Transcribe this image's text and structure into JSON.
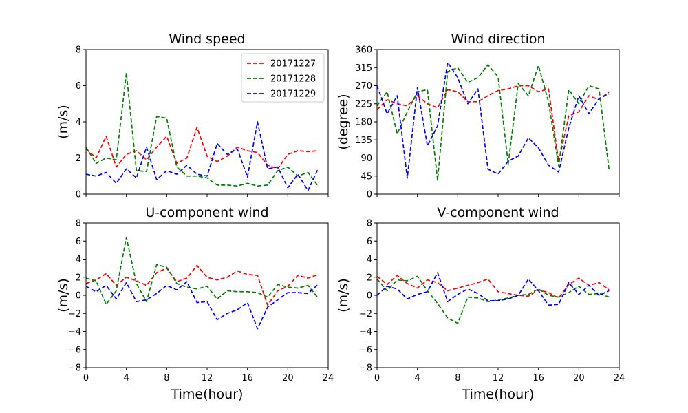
{
  "chart_data": [
    {
      "type": "line",
      "title": "Wind speed",
      "xlabel": "",
      "ylabel": "(m/s)",
      "xlim": [
        0,
        24
      ],
      "ylim": [
        0,
        8
      ],
      "xticks": [
        0,
        4,
        8,
        12,
        16,
        20,
        24
      ],
      "xtick_labels_visible": false,
      "yticks": [
        0,
        2,
        4,
        6,
        8
      ],
      "grid": false,
      "legend": "top-right",
      "x": [
        0,
        1,
        2,
        3,
        4,
        5,
        6,
        7,
        8,
        9,
        10,
        11,
        12,
        13,
        14,
        15,
        16,
        17,
        18,
        19,
        20,
        21,
        22,
        23
      ],
      "series": [
        {
          "name": "20171227",
          "color": "#ff0000",
          "values": [
            2.5,
            2.0,
            3.2,
            1.5,
            2.2,
            2.4,
            1.9,
            2.6,
            3.2,
            1.7,
            2.0,
            3.7,
            2.1,
            1.8,
            2.1,
            2.6,
            2.4,
            2.3,
            1.6,
            1.4,
            2.2,
            2.4,
            2.35,
            2.4
          ]
        },
        {
          "name": "20171228",
          "color": "#008000",
          "values": [
            2.6,
            1.7,
            2.0,
            1.9,
            6.7,
            1.3,
            1.25,
            4.3,
            4.2,
            1.5,
            1.0,
            1.0,
            0.9,
            0.5,
            0.5,
            0.45,
            0.6,
            0.45,
            0.5,
            1.3,
            1.5,
            1.0,
            1.2,
            0.45
          ]
        },
        {
          "name": "20171229",
          "color": "#0000ff",
          "values": [
            1.1,
            1.0,
            1.2,
            0.6,
            1.4,
            0.9,
            2.6,
            0.8,
            1.3,
            1.1,
            1.6,
            1.1,
            1.0,
            2.8,
            2.2,
            2.5,
            0.95,
            4.0,
            1.4,
            1.5,
            0.35,
            1.1,
            0.2,
            1.4
          ]
        }
      ]
    },
    {
      "type": "line",
      "title": "Wind direction",
      "xlabel": "",
      "ylabel": "(degree)",
      "xlim": [
        0,
        24
      ],
      "ylim": [
        0,
        360
      ],
      "xticks": [
        0,
        4,
        8,
        12,
        16,
        20,
        24
      ],
      "xtick_labels_visible": false,
      "yticks": [
        0,
        45,
        90,
        135,
        180,
        225,
        270,
        315,
        360
      ],
      "grid": false,
      "x": [
        0,
        1,
        2,
        3,
        4,
        5,
        6,
        7,
        8,
        9,
        10,
        11,
        12,
        13,
        14,
        15,
        16,
        17,
        18,
        19,
        20,
        21,
        22,
        23
      ],
      "series": [
        {
          "color": "#ff0000",
          "values": [
            210,
            235,
            225,
            220,
            245,
            225,
            215,
            260,
            255,
            230,
            230,
            245,
            258,
            262,
            270,
            270,
            255,
            262,
            80,
            195,
            205,
            245,
            235,
            255
          ]
        },
        {
          "color": "#008000",
          "values": [
            220,
            255,
            150,
            205,
            255,
            260,
            35,
            305,
            315,
            278,
            290,
            322,
            292,
            75,
            275,
            245,
            320,
            230,
            70,
            260,
            225,
            270,
            262,
            60
          ]
        },
        {
          "color": "#0000ff",
          "values": [
            270,
            200,
            245,
            40,
            265,
            120,
            170,
            328,
            290,
            225,
            262,
            62,
            50,
            82,
            95,
            140,
            115,
            72,
            55,
            165,
            245,
            200,
            238,
            250
          ]
        }
      ]
    },
    {
      "type": "line",
      "title": "U-component wind",
      "xlabel": "Time(hour)",
      "ylabel": "(m/s)",
      "xlim": [
        0,
        24
      ],
      "ylim": [
        -8,
        8
      ],
      "xticks": [
        0,
        4,
        8,
        12,
        16,
        20,
        24
      ],
      "yticks": [
        -8,
        -6,
        -4,
        -2,
        0,
        2,
        4,
        6,
        8
      ],
      "grid": false,
      "x": [
        0,
        1,
        2,
        3,
        4,
        5,
        6,
        7,
        8,
        9,
        10,
        11,
        12,
        13,
        14,
        15,
        16,
        17,
        18,
        19,
        20,
        21,
        22,
        23
      ],
      "series": [
        {
          "color": "#ff0000",
          "values": [
            1.3,
            1.7,
            2.4,
            1.1,
            2.0,
            1.6,
            1.1,
            2.5,
            3.0,
            1.5,
            1.9,
            3.3,
            2.0,
            1.7,
            2.0,
            2.7,
            2.3,
            2.2,
            -1.1,
            0.5,
            1.0,
            2.2,
            1.9,
            2.3
          ]
        },
        {
          "color": "#008000",
          "values": [
            1.9,
            1.6,
            -1.0,
            0.5,
            6.4,
            1.3,
            -0.7,
            3.4,
            3.1,
            1.3,
            0.9,
            0.7,
            1.0,
            -0.4,
            0.5,
            0.4,
            0.4,
            0.3,
            -0.2,
            1.2,
            0.9,
            0.8,
            1.1,
            -0.3
          ]
        },
        {
          "color": "#0000ff",
          "values": [
            1.0,
            0.4,
            1.1,
            -0.4,
            1.4,
            -0.7,
            -0.5,
            0.2,
            1.1,
            0.6,
            1.5,
            -0.8,
            -0.7,
            -2.7,
            -2.0,
            -1.6,
            -0.8,
            -3.7,
            -1.3,
            -0.5,
            0.3,
            0.3,
            0.2,
            1.2
          ]
        }
      ]
    },
    {
      "type": "line",
      "title": "V-component wind",
      "xlabel": "Time(hour)",
      "ylabel": "(m/s)",
      "xlim": [
        0,
        24
      ],
      "ylim": [
        -8,
        8
      ],
      "xticks": [
        0,
        4,
        8,
        12,
        16,
        20,
        24
      ],
      "yticks": [
        -8,
        -6,
        -4,
        -2,
        0,
        2,
        4,
        6,
        8
      ],
      "grid": false,
      "x": [
        0,
        1,
        2,
        3,
        4,
        5,
        6,
        7,
        8,
        9,
        10,
        11,
        12,
        13,
        14,
        15,
        16,
        17,
        18,
        19,
        20,
        21,
        22,
        23
      ],
      "series": [
        {
          "color": "#ff0000",
          "values": [
            2.1,
            1.2,
            2.2,
            1.3,
            0.8,
            1.7,
            1.4,
            0.5,
            0.8,
            1.1,
            1.4,
            1.8,
            0.4,
            0.2,
            0.0,
            -0.1,
            0.6,
            0.3,
            -0.3,
            1.2,
            1.9,
            1.1,
            1.4,
            0.6
          ]
        },
        {
          "color": "#008000",
          "values": [
            1.8,
            0.5,
            1.7,
            1.6,
            2.1,
            0.5,
            -0.9,
            -2.5,
            -3.1,
            -0.2,
            -0.3,
            -0.7,
            -0.5,
            -0.3,
            0.0,
            0.1,
            0.7,
            0.0,
            -0.2,
            0.3,
            1.0,
            0.1,
            0.2,
            -0.2
          ]
        },
        {
          "color": "#0000ff",
          "values": [
            0.0,
            1.0,
            0.7,
            -0.4,
            0.1,
            0.4,
            2.5,
            -0.7,
            0.1,
            0.7,
            0.2,
            -0.6,
            -0.6,
            -0.4,
            0.0,
            1.8,
            0.5,
            -1.1,
            -1.0,
            1.4,
            0.1,
            1.1,
            0.0,
            0.5
          ]
        }
      ]
    }
  ]
}
